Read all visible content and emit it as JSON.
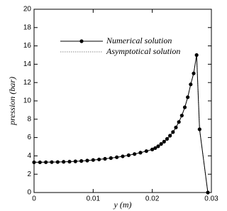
{
  "chart_data": {
    "type": "line",
    "xlabel": "y (m)",
    "ylabel": "pression (bar)",
    "x": [
      0,
      0.001,
      0.002,
      0.003,
      0.004,
      0.005,
      0.006,
      0.007,
      0.008,
      0.009,
      0.01,
      0.011,
      0.012,
      0.013,
      0.014,
      0.015,
      0.016,
      0.017,
      0.018,
      0.019,
      0.02,
      0.0205,
      0.021,
      0.0215,
      0.022,
      0.0225,
      0.023,
      0.0235,
      0.024,
      0.0245,
      0.025,
      0.0255,
      0.026,
      0.0265,
      0.027,
      0.0275,
      0.028,
      0.0294
    ],
    "series": [
      {
        "name": "Numerical solution",
        "color": "#000000",
        "marker": true,
        "dash": false,
        "values": [
          3.3,
          3.3,
          3.31,
          3.32,
          3.33,
          3.35,
          3.37,
          3.4,
          3.44,
          3.49,
          3.55,
          3.61,
          3.68,
          3.76,
          3.85,
          3.95,
          4.07,
          4.2,
          4.35,
          4.52,
          4.7,
          4.85,
          5.05,
          5.3,
          5.55,
          5.85,
          6.2,
          6.6,
          7.1,
          7.7,
          8.4,
          9.3,
          10.4,
          11.8,
          13.0,
          15.0,
          6.9,
          0
        ]
      },
      {
        "name": "Asymptotical solution",
        "color": "#888888",
        "marker": false,
        "dash": true,
        "values": [
          3.3,
          3.3,
          3.31,
          3.32,
          3.33,
          3.35,
          3.37,
          3.4,
          3.44,
          3.49,
          3.55,
          3.61,
          3.68,
          3.76,
          3.85,
          3.95,
          4.07,
          4.2,
          4.35,
          4.52,
          4.7,
          4.85,
          5.05,
          5.3,
          5.55,
          5.85,
          6.2,
          6.6,
          7.1,
          7.7,
          8.4,
          9.3,
          10.4,
          11.8,
          13.0,
          15.0,
          6.9,
          0
        ]
      }
    ],
    "xlim": [
      0,
      0.03
    ],
    "xticks": [
      0,
      0.01,
      0.02,
      0.03
    ],
    "ylim": [
      0,
      20
    ],
    "yticks": [
      0,
      2,
      4,
      6,
      8,
      10,
      12,
      14,
      16,
      18,
      20
    ]
  }
}
